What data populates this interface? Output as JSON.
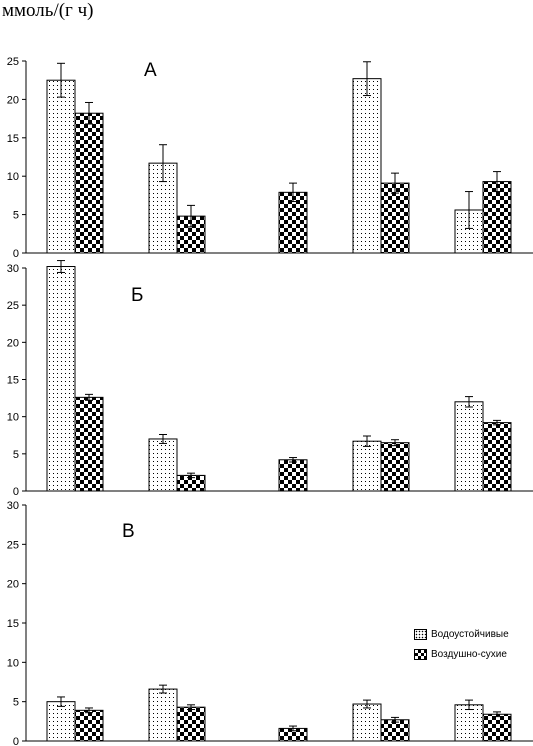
{
  "y_unit_label": "ммоль/(г ч)",
  "legend": {
    "items": [
      {
        "label": "Водоустойчивые",
        "pattern": "dots"
      },
      {
        "label": "Воздушно-сухие",
        "pattern": "checker"
      }
    ]
  },
  "chart_data": [
    {
      "type": "bar",
      "panel_label": "А",
      "ylim": [
        0,
        25
      ],
      "yticks": [
        0,
        5,
        10,
        15,
        20,
        25
      ],
      "groups": 5,
      "series": [
        {
          "name": "Водоустойчивые",
          "values": [
            22.5,
            11.7,
            null,
            22.7,
            5.6
          ],
          "errors": [
            2.2,
            2.4,
            null,
            2.2,
            2.4
          ]
        },
        {
          "name": "Воздушно-сухие",
          "values": [
            18.2,
            4.8,
            7.9,
            9.1,
            9.3
          ],
          "errors": [
            1.4,
            1.4,
            1.2,
            1.3,
            1.3
          ]
        }
      ]
    },
    {
      "type": "bar",
      "panel_label": "Б",
      "ylim": [
        0,
        30
      ],
      "yticks": [
        0,
        5,
        10,
        15,
        20,
        25,
        30
      ],
      "groups": 5,
      "series": [
        {
          "name": "Водоустойчивые",
          "values": [
            30.2,
            7.0,
            null,
            6.7,
            12.0
          ],
          "errors": [
            0.8,
            0.6,
            null,
            0.7,
            0.7
          ]
        },
        {
          "name": "Воздушно-сухие",
          "values": [
            12.6,
            2.1,
            4.2,
            6.5,
            9.2
          ],
          "errors": [
            0.4,
            0.3,
            0.3,
            0.4,
            0.3
          ]
        }
      ]
    },
    {
      "type": "bar",
      "panel_label": "В",
      "ylim": [
        0,
        30
      ],
      "yticks": [
        0,
        5,
        10,
        15,
        20,
        25,
        30
      ],
      "groups": 5,
      "series": [
        {
          "name": "Водоустойчивые",
          "values": [
            5.0,
            6.6,
            null,
            4.7,
            4.6
          ],
          "errors": [
            0.6,
            0.5,
            null,
            0.5,
            0.6
          ]
        },
        {
          "name": "Воздушно-сухие",
          "values": [
            3.9,
            4.3,
            1.6,
            2.7,
            3.4
          ],
          "errors": [
            0.3,
            0.3,
            0.3,
            0.3,
            0.3
          ]
        }
      ]
    }
  ]
}
